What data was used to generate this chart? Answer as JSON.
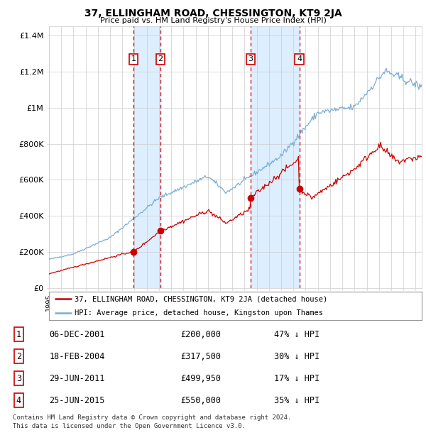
{
  "title": "37, ELLINGHAM ROAD, CHESSINGTON, KT9 2JA",
  "subtitle": "Price paid vs. HM Land Registry's House Price Index (HPI)",
  "legend_line1": "37, ELLINGHAM ROAD, CHESSINGTON, KT9 2JA (detached house)",
  "legend_line2": "HPI: Average price, detached house, Kingston upon Thames",
  "footnote1": "Contains HM Land Registry data © Crown copyright and database right 2024.",
  "footnote2": "This data is licensed under the Open Government Licence v3.0.",
  "transactions": [
    {
      "num": 1,
      "date": "06-DEC-2001",
      "price": 200000,
      "price_str": "£200,000",
      "pct": "47% ↓ HPI",
      "year": 2001.92
    },
    {
      "num": 2,
      "date": "18-FEB-2004",
      "price": 317500,
      "price_str": "£317,500",
      "pct": "30% ↓ HPI",
      "year": 2004.12
    },
    {
      "num": 3,
      "date": "29-JUN-2011",
      "price": 499950,
      "price_str": "£499,950",
      "pct": "17% ↓ HPI",
      "year": 2011.49
    },
    {
      "num": 4,
      "date": "25-JUN-2015",
      "price": 550000,
      "price_str": "£550,000",
      "pct": "35% ↓ HPI",
      "year": 2015.48
    }
  ],
  "red_line_color": "#cc0000",
  "blue_line_color": "#7aadd4",
  "shade_color": "#ddeeff",
  "dashed_color": "#cc0000",
  "grid_color": "#cccccc",
  "background_color": "#ffffff",
  "ylim": [
    0,
    1450000
  ],
  "xlim_start": 1995.0,
  "xlim_end": 2025.5
}
